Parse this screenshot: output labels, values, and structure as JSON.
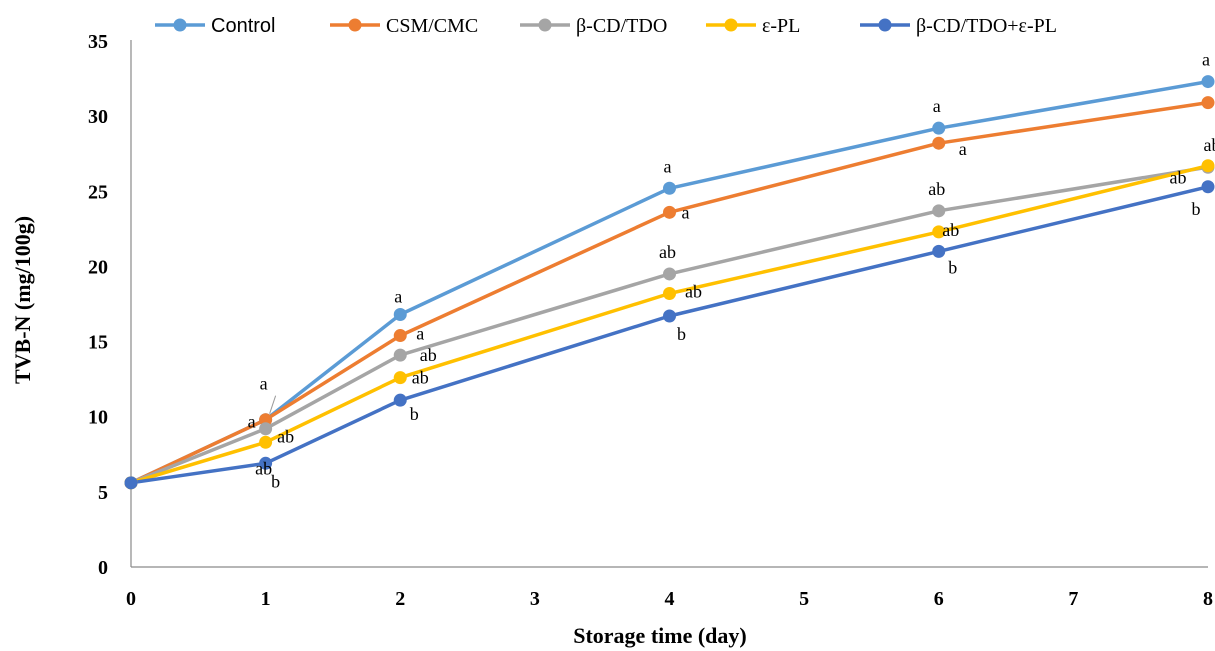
{
  "chart_data": {
    "type": "line",
    "xlabel": "Storage time (day)",
    "ylabel": "TVB-N (mg/100g)",
    "xlim": [
      0,
      8
    ],
    "ylim": [
      0,
      35
    ],
    "xticks": [
      "0",
      "1",
      "2",
      "3",
      "4",
      "5",
      "6",
      "7",
      "8"
    ],
    "yticks": [
      "0",
      "5",
      "10",
      "15",
      "20",
      "25",
      "30",
      "35"
    ],
    "grid": false,
    "legend_position": "top",
    "x": [
      0,
      1,
      2,
      4,
      6,
      8
    ],
    "series": [
      {
        "name": "Control",
        "color": "#5B9BD5",
        "values": [
          5.6,
          9.8,
          16.8,
          25.2,
          29.2,
          32.3
        ],
        "labels": [
          "",
          "a",
          "a",
          "a",
          "a",
          "a"
        ]
      },
      {
        "name": "CSM/CMC",
        "color": "#ED7D31",
        "values": [
          5.6,
          9.8,
          15.4,
          23.6,
          28.2,
          30.9
        ],
        "labels": [
          "",
          "a",
          "a",
          "a",
          "a",
          "a"
        ]
      },
      {
        "name": "β-CD/TDO",
        "color": "#A5A5A5",
        "values": [
          5.6,
          9.2,
          14.1,
          19.5,
          23.7,
          26.6
        ],
        "labels": [
          "",
          "ab",
          "ab",
          "ab",
          "ab",
          "ab"
        ]
      },
      {
        "name": "ε-PL",
        "color": "#FFC000",
        "values": [
          5.6,
          8.3,
          12.6,
          18.2,
          22.3,
          26.7
        ],
        "labels": [
          "",
          "ab",
          "ab",
          "ab",
          "ab",
          "ab"
        ]
      },
      {
        "name": "β-CD/TDO+ε-PL",
        "color": "#4472C4",
        "values": [
          5.6,
          6.9,
          11.1,
          16.7,
          21.0,
          25.3
        ],
        "labels": [
          "",
          "b",
          "b",
          "b",
          "b",
          "b"
        ]
      }
    ]
  }
}
